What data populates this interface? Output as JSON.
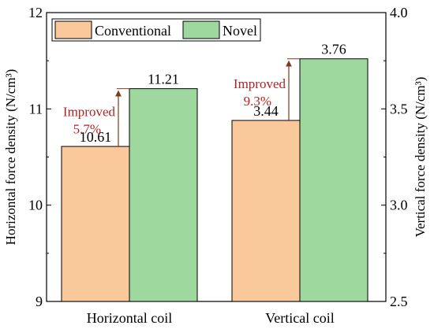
{
  "chart_data": {
    "type": "bar",
    "categories": [
      "Horizontal coil",
      "Vertical coil"
    ],
    "series": [
      {
        "name": "Conventional",
        "color": "#f9c89b",
        "values": [
          10.61,
          3.44
        ],
        "labels": [
          "10.61",
          "3.44"
        ]
      },
      {
        "name": "Novel",
        "color": "#9fd89f",
        "values": [
          11.21,
          3.76
        ],
        "labels": [
          "11.21",
          "3.76"
        ]
      }
    ],
    "axes": {
      "left": {
        "label": "Horizontal force density (N/cm³)",
        "min": 9,
        "max": 12,
        "ticks": [
          "9",
          "10",
          "11",
          "12"
        ]
      },
      "right": {
        "label": "Vertical force density (N/cm³)",
        "min": 2.5,
        "max": 4.0,
        "ticks": [
          "2.5",
          "3.0",
          "3.5",
          "4.0"
        ]
      }
    },
    "category_axis_map": [
      "left",
      "right"
    ],
    "annotations": [
      {
        "category": 0,
        "line1": "Improved",
        "line2": "5.7%",
        "color": "#b22222"
      },
      {
        "category": 1,
        "line1": "Improved",
        "line2": "9.3%",
        "color": "#b22222"
      }
    ],
    "legend": {
      "position": "top-left",
      "entries": [
        "Conventional",
        "Novel"
      ]
    },
    "grid": false
  }
}
